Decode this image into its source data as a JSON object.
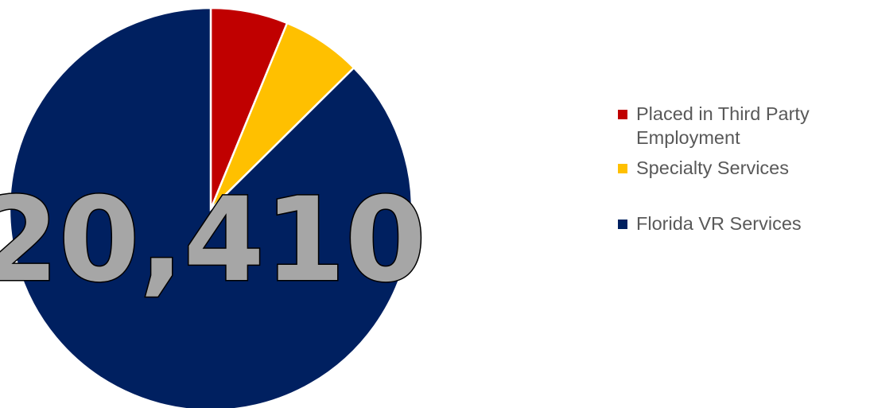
{
  "chart_data": {
    "type": "pie",
    "center_label": "20,410",
    "slices": [
      {
        "label": "Placed in Third Party Employment",
        "value": 6.2,
        "color": "#C00000"
      },
      {
        "label": "Specialty Services",
        "value": 6.4,
        "color": "#FFC000"
      },
      {
        "label": "Florida VR Services",
        "value": 87.4,
        "color": "#002060"
      }
    ],
    "legend_position": "right"
  }
}
